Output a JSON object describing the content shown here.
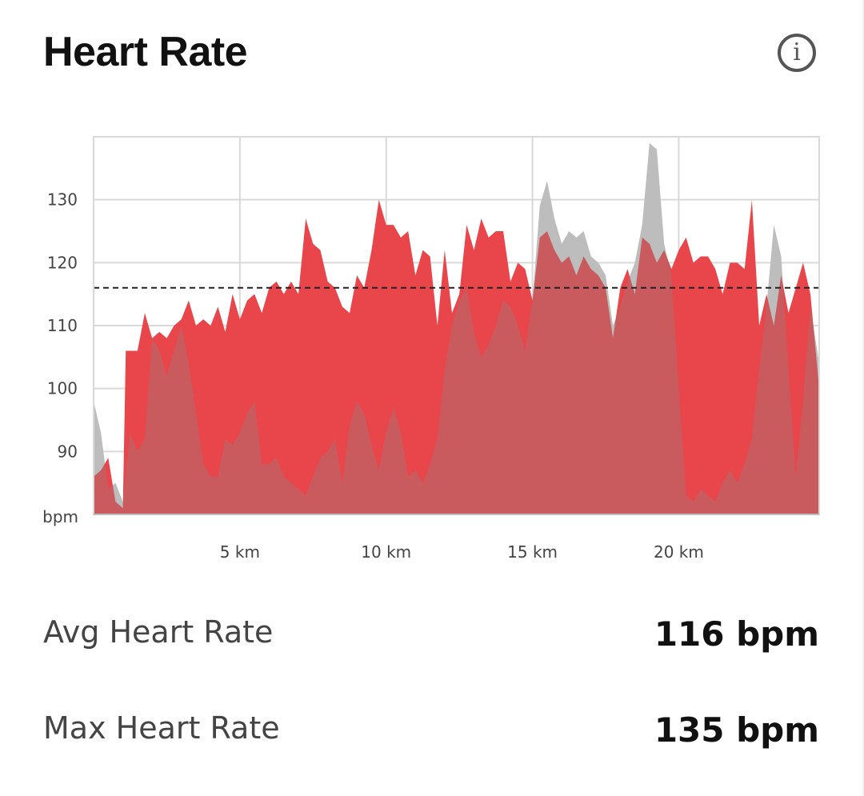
{
  "title": "Heart Rate",
  "info_icon": "info-icon",
  "stats": {
    "avg_label": "Avg Heart Rate",
    "avg_value": "116 bpm",
    "max_label": "Max Heart Rate",
    "max_value": "135 bpm"
  },
  "colors": {
    "accent": "#e8262c",
    "grey_series": "#8a8a8a",
    "grid": "#d9d9d9",
    "avg_line": "#222222"
  },
  "chart_data": {
    "type": "area",
    "xlabel": "",
    "ylabel": "bpm",
    "ylim": [
      80,
      140
    ],
    "xlim": [
      0,
      24.8
    ],
    "x_unit": "km",
    "x_ticks": [
      5,
      10,
      15,
      20
    ],
    "x_tick_labels": [
      "5 km",
      "10 km",
      "15 km",
      "20 km"
    ],
    "y_ticks": [
      90,
      100,
      110,
      120,
      130
    ],
    "y_tick_labels": [
      "90",
      "100",
      "110",
      "120",
      "130"
    ],
    "y_axis_unit_label": "bpm",
    "grid": true,
    "reference_line": {
      "value": 116,
      "style": "dashed"
    },
    "series": [
      {
        "color": "#e8262c",
        "x": [
          0,
          0.25,
          0.5,
          0.75,
          1.0,
          1.1,
          1.5,
          1.75,
          2.0,
          2.25,
          2.5,
          2.75,
          3.0,
          3.25,
          3.5,
          3.75,
          4.0,
          4.25,
          4.5,
          4.75,
          5.0,
          5.25,
          5.5,
          5.75,
          6.0,
          6.25,
          6.5,
          6.75,
          7.0,
          7.25,
          7.5,
          7.75,
          8.0,
          8.25,
          8.5,
          8.75,
          9.0,
          9.25,
          9.5,
          9.75,
          10.0,
          10.25,
          10.5,
          10.75,
          11.0,
          11.25,
          11.5,
          11.75,
          12.0,
          12.25,
          12.5,
          12.75,
          13.0,
          13.25,
          13.5,
          13.75,
          14.0,
          14.25,
          14.5,
          14.75,
          15.0,
          15.25,
          15.5,
          15.75,
          16.0,
          16.25,
          16.5,
          16.75,
          17.0,
          17.25,
          17.5,
          17.75,
          18.0,
          18.25,
          18.5,
          18.75,
          19.0,
          19.25,
          19.5,
          19.75,
          20.0,
          20.25,
          20.5,
          20.75,
          21.0,
          21.25,
          21.5,
          21.75,
          22.0,
          22.25,
          22.5,
          22.75,
          23.0,
          23.25,
          23.5,
          23.75,
          24.0,
          24.25,
          24.5,
          24.8
        ],
        "values": [
          86,
          87,
          89,
          82,
          81,
          106,
          106,
          112,
          108,
          109,
          108,
          110,
          111,
          114,
          110,
          111,
          110,
          113,
          109,
          115,
          111,
          114,
          115,
          112,
          116,
          117,
          115,
          117,
          115,
          127,
          123,
          122,
          117,
          116,
          113,
          112,
          118,
          116,
          122,
          130,
          126,
          126,
          124,
          125,
          118,
          122,
          121,
          110,
          122,
          112,
          115,
          126,
          122,
          127,
          124,
          125,
          125,
          117,
          120,
          119,
          114,
          124,
          125,
          122,
          120,
          121,
          118,
          121,
          119,
          118,
          116,
          108,
          116,
          119,
          115,
          124,
          123,
          120,
          122,
          119,
          122,
          124,
          120,
          121,
          121,
          119,
          115,
          120,
          120,
          119,
          130,
          110,
          115,
          110,
          118,
          112,
          116,
          120,
          115,
          100
        ]
      },
      {
        "color": "#8a8a8a",
        "x": [
          0,
          0.25,
          0.5,
          0.75,
          1.0,
          1.25,
          1.5,
          1.75,
          2.0,
          2.25,
          2.5,
          2.75,
          3.0,
          3.25,
          3.5,
          3.75,
          4.0,
          4.25,
          4.5,
          4.75,
          5.0,
          5.25,
          5.5,
          5.75,
          6.0,
          6.25,
          6.5,
          6.75,
          7.0,
          7.25,
          7.5,
          7.75,
          8.0,
          8.25,
          8.5,
          8.75,
          9.0,
          9.25,
          9.5,
          9.75,
          10.0,
          10.25,
          10.5,
          10.75,
          11.0,
          11.25,
          11.5,
          11.75,
          12.0,
          12.25,
          12.5,
          12.75,
          13.0,
          13.25,
          13.5,
          13.75,
          14.0,
          14.25,
          14.5,
          14.75,
          15.0,
          15.25,
          15.5,
          15.75,
          16.0,
          16.25,
          16.5,
          16.75,
          17.0,
          17.25,
          17.5,
          17.75,
          18.0,
          18.25,
          18.5,
          18.75,
          19.0,
          19.25,
          19.5,
          19.75,
          20.0,
          20.25,
          20.5,
          20.75,
          21.0,
          21.25,
          21.5,
          21.75,
          22.0,
          22.25,
          22.5,
          22.75,
          23.0,
          23.25,
          23.5,
          23.75,
          24.0,
          24.25,
          24.5,
          24.8
        ],
        "values": [
          98,
          93,
          84,
          85,
          82,
          93,
          90,
          92,
          108,
          106,
          102,
          106,
          110,
          104,
          96,
          88,
          86,
          86,
          92,
          91,
          93,
          96,
          98,
          88,
          88,
          89,
          86,
          85,
          84,
          83,
          86,
          89,
          90,
          92,
          85,
          94,
          98,
          96,
          91,
          87,
          93,
          97,
          93,
          86,
          87,
          85,
          88,
          92,
          103,
          110,
          114,
          116,
          109,
          105,
          107,
          110,
          114,
          113,
          110,
          106,
          114,
          129,
          133,
          127,
          123,
          125,
          124,
          125,
          121,
          120,
          118,
          110,
          113,
          117,
          120,
          126,
          139,
          138,
          123,
          118,
          100,
          83,
          82,
          84,
          83,
          82,
          85,
          87,
          85,
          88,
          92,
          103,
          113,
          126,
          121,
          103,
          86,
          98,
          113,
          104
        ]
      }
    ]
  }
}
